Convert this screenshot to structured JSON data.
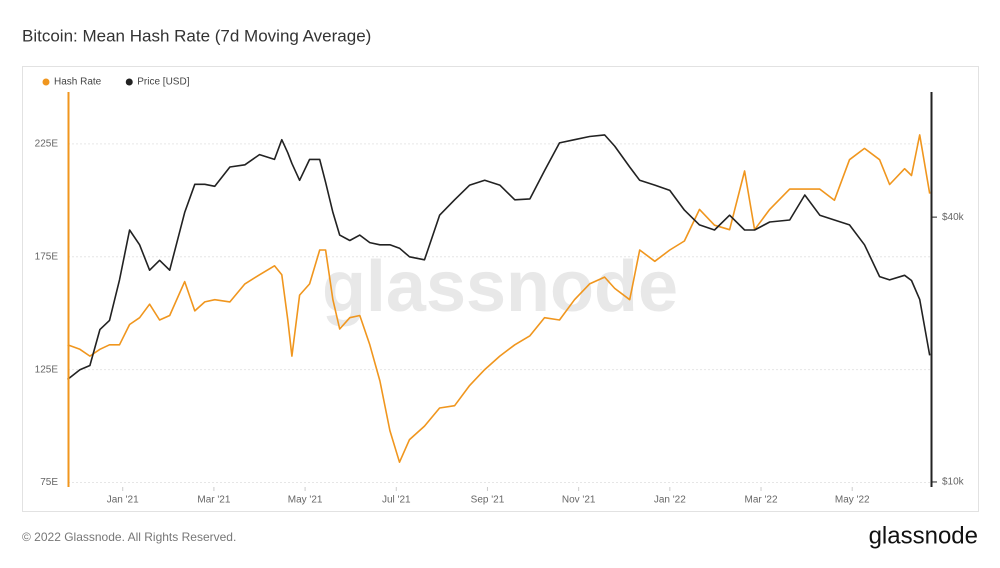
{
  "chart_data": {
    "type": "line",
    "title": "Bitcoin: Mean Hash Rate (7d Moving Average)",
    "watermark": "glassnode",
    "footer": "© 2022 Glassnode. All Rights Reserved.",
    "brand": "glassnode",
    "legend": "top-left",
    "grid": true,
    "y2log": true,
    "x": [
      -1.21,
      -0.94,
      -0.72,
      -0.5,
      -0.29,
      -0.07,
      0.15,
      0.37,
      0.59,
      0.81,
      1.03,
      1.36,
      1.58,
      1.8,
      2.02,
      2.35,
      2.68,
      3.0,
      3.33,
      3.49,
      3.62,
      3.71,
      3.88,
      4.1,
      4.32,
      4.45,
      4.61,
      4.76,
      4.98,
      5.2,
      5.42,
      5.64,
      5.86,
      6.07,
      6.29,
      6.62,
      6.95,
      7.28,
      7.61,
      7.94,
      8.27,
      8.6,
      8.93,
      9.25,
      9.58,
      9.91,
      10.24,
      10.57,
      10.79,
      11.12,
      11.34,
      11.67,
      12.0,
      12.32,
      12.65,
      12.98,
      13.31,
      13.64,
      13.86,
      14.19,
      14.63,
      14.96,
      15.29,
      15.61,
      15.94,
      16.27,
      16.6,
      16.82,
      17.15,
      17.3,
      17.48,
      17.7
    ],
    "xlim": [
      -1.2,
      17.75
    ],
    "xticks": [
      {
        "value": 0,
        "label": "Jan '21"
      },
      {
        "value": 2,
        "label": "Mar '21"
      },
      {
        "value": 4,
        "label": "May '21"
      },
      {
        "value": 6,
        "label": "Jul '21"
      },
      {
        "value": 8,
        "label": "Sep '21"
      },
      {
        "value": 10,
        "label": "Nov '21"
      },
      {
        "value": 12,
        "label": "Jan '22"
      },
      {
        "value": 14,
        "label": "Mar '22"
      },
      {
        "value": 16,
        "label": "May '22"
      }
    ],
    "ylim": [
      73,
      248
    ],
    "yticks": [
      {
        "value": 75,
        "label": "75E"
      },
      {
        "value": 125,
        "label": "125E"
      },
      {
        "value": 175,
        "label": "175E"
      },
      {
        "value": 225,
        "label": "225E"
      }
    ],
    "y2lim": [
      9740,
      77000
    ],
    "y2ticks": [
      {
        "value": 10000,
        "label": "$10k"
      },
      {
        "value": 40000,
        "label": "$40k"
      }
    ],
    "series": [
      {
        "name": "Hash Rate",
        "color": "#f0961e",
        "axis": "y",
        "values": [
          136,
          134,
          131,
          134,
          136,
          136,
          145,
          148,
          154,
          147,
          149,
          164,
          151,
          155,
          156,
          155,
          163,
          167,
          171,
          167,
          147,
          131,
          158,
          163,
          178,
          178,
          156,
          143,
          148,
          149,
          136,
          120,
          98,
          84,
          94,
          100,
          108,
          109,
          118,
          125,
          131,
          136,
          140,
          148,
          147,
          156,
          163,
          166,
          161,
          156,
          178,
          173,
          178,
          182,
          196,
          189,
          187,
          213,
          187,
          196,
          205,
          205,
          205,
          200,
          218,
          223,
          218,
          207,
          214,
          211,
          229,
          203
        ]
      },
      {
        "name": "Price [USD]",
        "color": "#222222",
        "axis": "y2",
        "values": [
          17100,
          18000,
          18400,
          22200,
          23300,
          28800,
          37400,
          34600,
          30300,
          31900,
          30300,
          41000,
          47500,
          47500,
          47000,
          52000,
          52600,
          55500,
          54100,
          60000,
          56000,
          53000,
          48500,
          54100,
          54100,
          48000,
          41000,
          36400,
          35400,
          36400,
          35000,
          34600,
          34600,
          34000,
          32500,
          32000,
          40400,
          43800,
          47300,
          48500,
          47300,
          43800,
          44000,
          51000,
          59000,
          60000,
          61000,
          61500,
          58000,
          52000,
          48500,
          47300,
          46000,
          41500,
          38400,
          37400,
          40400,
          37400,
          37400,
          39000,
          39400,
          44900,
          40400,
          39400,
          38400,
          34600,
          29300,
          28800,
          29500,
          28700,
          26000,
          19400
        ]
      }
    ]
  }
}
